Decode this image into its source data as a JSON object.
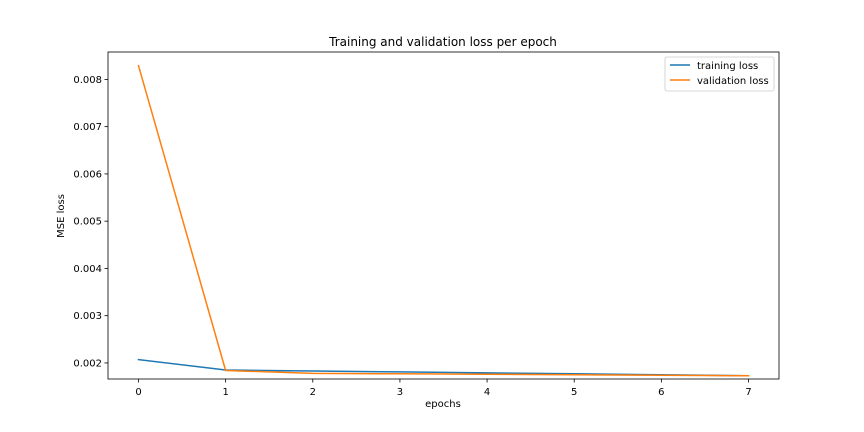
{
  "chart_data": {
    "type": "line",
    "title": "Training and validation loss per epoch",
    "xlabel": "epochs",
    "ylabel": "MSE loss",
    "x": [
      0,
      1,
      2,
      3,
      4,
      5,
      6,
      7
    ],
    "xlim": [
      -0.35,
      7.35
    ],
    "ylim": [
      0.00166,
      0.00858
    ],
    "x_ticks": [
      0,
      1,
      2,
      3,
      4,
      5,
      6,
      7
    ],
    "x_tick_labels": [
      "0",
      "1",
      "2",
      "3",
      "4",
      "5",
      "6",
      "7"
    ],
    "y_ticks": [
      0.002,
      0.003,
      0.004,
      0.005,
      0.006,
      0.007,
      0.008
    ],
    "y_tick_labels": [
      "0.002",
      "0.003",
      "0.004",
      "0.005",
      "0.006",
      "0.007",
      "0.008"
    ],
    "grid": false,
    "legend_position": "top-right",
    "series": [
      {
        "name": "training loss",
        "color": "#1f77b4",
        "values": [
          0.00207,
          0.00185,
          0.00183,
          0.00181,
          0.00179,
          0.00177,
          0.00175,
          0.00173
        ]
      },
      {
        "name": "validation loss",
        "color": "#ff7f0e",
        "values": [
          0.00829,
          0.00184,
          0.00178,
          0.00177,
          0.00176,
          0.00175,
          0.00174,
          0.00173
        ]
      }
    ]
  }
}
